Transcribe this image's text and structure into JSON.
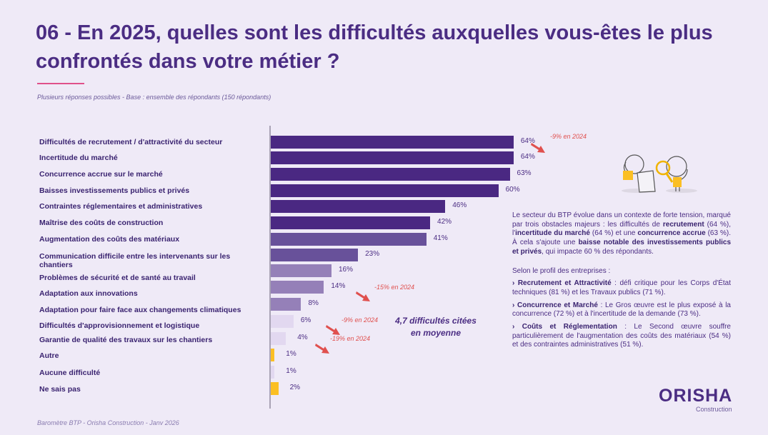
{
  "header": {
    "title": "06 - En 2025, quelles sont les difficultés auxquelles vous-êtes le plus confrontés dans votre métier ?",
    "subtitle": "Plusieurs réponses possibles  - Base : ensemble des répondants (150 répondants)"
  },
  "chart_data": {
    "type": "bar",
    "orientation": "horizontal",
    "categories": [
      "Difficultés de recrutement / d'attractivité du secteur",
      "Incertitude du marché",
      "Concurrence accrue sur le marché",
      "Baisses investissements publics et privés",
      "Contraintes réglementaires et administratives",
      "Maîtrise des coûts de construction",
      "Augmentation des coûts des matériaux",
      "Communication difficile entre les intervenants sur les chantiers",
      "Problèmes de sécurité et de santé au travail",
      "Adaptation aux innovations",
      "Adaptation pour faire face aux changements climatiques",
      "Difficultés d'approvisionnement et logistique",
      "Garantie de qualité des travaux sur les chantiers",
      "Autre",
      "Aucune difficulté",
      "Ne sais pas"
    ],
    "values": [
      64,
      64,
      63,
      60,
      46,
      42,
      41,
      23,
      16,
      14,
      8,
      6,
      4,
      1,
      1,
      2
    ],
    "value_labels": [
      "64%",
      "64%",
      "63%",
      "60%",
      "46%",
      "42%",
      "41%",
      "23%",
      "16%",
      "14%",
      "8%",
      "6%",
      "4%",
      "1%",
      "1%",
      "2%"
    ],
    "bar_colors": [
      "#4a2882",
      "#4a2882",
      "#4a2882",
      "#4a2882",
      "#4a2882",
      "#4a2882",
      "#68519a",
      "#68519a",
      "#9580b8",
      "#9580b8",
      "#9580b8",
      "#e2d8f0",
      "#e2d8f0",
      "#fbbf24",
      "#e2d8f0",
      "#fbbf24"
    ],
    "xlim": [
      0,
      100
    ],
    "annotations": [
      {
        "category_index": 0,
        "text": "-9% en 2024"
      },
      {
        "category_index": 9,
        "text": "-15% en 2024"
      },
      {
        "category_index": 11,
        "text": "-9% en 2024"
      },
      {
        "category_index": 12,
        "text": "-19% en 2024"
      }
    ]
  },
  "average": {
    "line1": "4,7 difficultés citées",
    "line2": "en moyenne"
  },
  "commentary": {
    "p1": [
      {
        "t": "Le secteur du BTP évolue dans un contexte de forte tension, marqué par trois obstacles majeurs : les difficultés de "
      },
      {
        "t": "recrutement",
        "b": true
      },
      {
        "t": " (64 %), l'"
      },
      {
        "t": "incertitude du marché",
        "b": true
      },
      {
        "t": " (64 %) et une "
      },
      {
        "t": "concurrence accrue",
        "b": true
      },
      {
        "t": " (63 %). À cela s'ajoute une "
      },
      {
        "t": "baisse notable des investissements publics et privés",
        "b": true
      },
      {
        "t": ", qui impacte 60 % des répondants."
      }
    ],
    "intro": "Selon le profil des entreprises :",
    "items": [
      {
        "head": "› Recrutement et Attractivité",
        "text": " : défi critique pour les Corps d'État techniques (81 %) et les Travaux publics (71 %)."
      },
      {
        "head": "› Concurrence et Marché",
        "text": " : Le Gros œuvre est le plus exposé à la concurrence (72 %) et à l'incertitude de la demande (73 %)."
      },
      {
        "head": "› Coûts et Réglementation",
        "text": " : Le Second œuvre souffre particulièrement de l'augmentation des coûts des matériaux (54 %) et des contraintes administratives (51 %)."
      }
    ]
  },
  "logo": {
    "name": "ORISHA",
    "sub": "Construction"
  },
  "footer": "Baromètre BTP - Orisha Construction - Janv 2026",
  "colors": {
    "accent": "#4b2d83",
    "underline": "#e0508a",
    "annotation": "#e0504e",
    "highlight": "#fbbf24"
  }
}
